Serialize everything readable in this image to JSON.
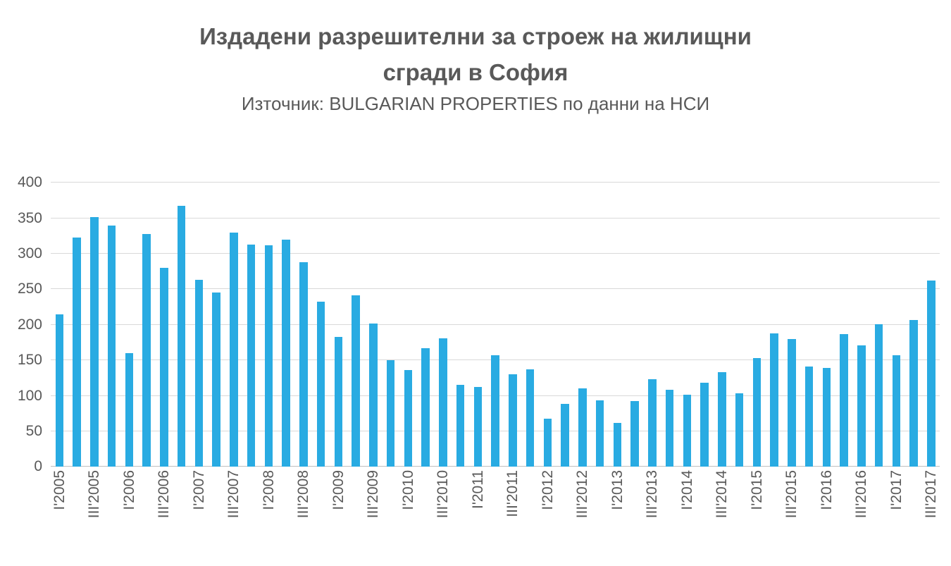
{
  "header": {
    "title_lines": [
      "Издадени разрешителни за строеж на жилищни",
      "сгради в София"
    ],
    "subtitle": "Източник: BULGARIAN PROPERTIES по данни на НСИ"
  },
  "colors": {
    "bar": "#29ABE2",
    "text": "#595959",
    "gridline": "#D9D9D9",
    "axis_line": "#BFBFBF"
  },
  "chart_data": {
    "type": "bar",
    "title": "Издадени разрешителни за строеж на жилищни сгради в София",
    "subtitle": "Източник: BULGARIAN PROPERTIES по данни на НСИ",
    "values": [
      215,
      323,
      352,
      340,
      160,
      328,
      280,
      368,
      263,
      245,
      330,
      313,
      312,
      320,
      288,
      233,
      183,
      241,
      202,
      150,
      136,
      167,
      181,
      115,
      112,
      157,
      130,
      137,
      68,
      89,
      110,
      94,
      62,
      93,
      123,
      108,
      102,
      118,
      133,
      104,
      153,
      188,
      180,
      141,
      139,
      187,
      171,
      201,
      157,
      207,
      262
    ],
    "x_tick_labels": [
      "I'2005",
      "III'2005",
      "I'2006",
      "III'2006",
      "I'2007",
      "III'2007",
      "I'2008",
      "III'2008",
      "I'2009",
      "III'2009",
      "I'2010",
      "III'2010",
      "I'2011",
      "III'2011",
      "I'2012",
      "III'2012",
      "I'2013",
      "III'2013",
      "I'2014",
      "III'2014",
      "I'2015",
      "III'2015",
      "I'2016",
      "III'2016",
      "I'2017",
      "III'2017"
    ],
    "x_tick_interval": 2,
    "y_ticks": [
      0,
      50,
      100,
      150,
      200,
      250,
      300,
      350,
      400
    ],
    "ylim": [
      0,
      400
    ],
    "bar_color": "#29ABE2",
    "grid": true,
    "legend": "none"
  }
}
